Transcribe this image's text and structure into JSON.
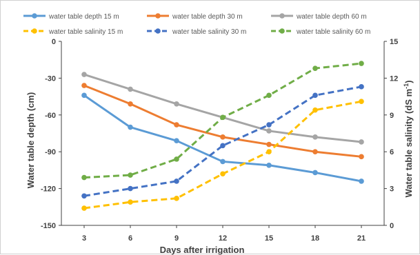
{
  "chart_data": {
    "type": "line",
    "title": "",
    "xlabel": "Days after  irrigation",
    "ylabel": "Water  table depth (cm)",
    "y2label_prefix": "Water table salinity (dS m",
    "y2label_sup": "-1",
    "y2label_suffix": ")",
    "x": [
      3,
      6,
      9,
      12,
      15,
      18,
      21
    ],
    "x_ticks": [
      "3",
      "6",
      "9",
      "12",
      "15",
      "18",
      "21"
    ],
    "ylim": [
      -150,
      0
    ],
    "y_ticks": [
      "0",
      "-30",
      "-60",
      "-90",
      "-120",
      "-150"
    ],
    "y_tick_values": [
      0,
      -30,
      -60,
      -90,
      -120,
      -150
    ],
    "y2lim": [
      0,
      15
    ],
    "y2_ticks": [
      "15",
      "12",
      "9",
      "6",
      "3",
      "0"
    ],
    "y2_tick_values": [
      15,
      12,
      9,
      6,
      3,
      0
    ],
    "grid": false,
    "legend_position": "top",
    "series": [
      {
        "name": "water table depth 15 m",
        "axis": "left",
        "style": "solid",
        "color": "#5b9bd5",
        "values": [
          -44,
          -70,
          -81,
          -98,
          -101,
          -107,
          -114
        ]
      },
      {
        "name": "water table depth 30 m",
        "axis": "left",
        "style": "solid",
        "color": "#ed7d31",
        "values": [
          -36,
          -51,
          -68,
          -78,
          -84,
          -90,
          -94
        ]
      },
      {
        "name": "water table depth 60 m",
        "axis": "left",
        "style": "solid",
        "color": "#a5a5a5",
        "values": [
          -27,
          -39,
          -51,
          -62,
          -73,
          -78,
          -82
        ]
      },
      {
        "name": "water table salinity 15 m",
        "axis": "right",
        "style": "dashed",
        "color": "#ffc000",
        "values": [
          1.4,
          1.9,
          2.2,
          4.2,
          6.0,
          9.4,
          10.1
        ]
      },
      {
        "name": "water table salinity 30 m",
        "axis": "right",
        "style": "dashed",
        "color": "#4472c4",
        "values": [
          2.4,
          3.0,
          3.6,
          6.5,
          8.2,
          10.6,
          11.3
        ]
      },
      {
        "name": "water table salinity 60 m",
        "axis": "right",
        "style": "dashed",
        "color": "#70ad47",
        "values": [
          3.9,
          4.1,
          5.4,
          8.8,
          10.6,
          12.8,
          13.2
        ]
      }
    ]
  }
}
